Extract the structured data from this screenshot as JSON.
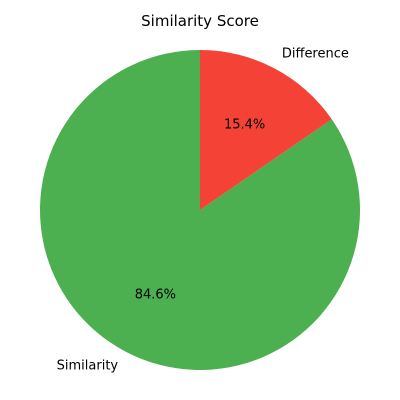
{
  "chart_data": {
    "type": "pie",
    "title": "Similarity Score",
    "slices": [
      {
        "label": "Similarity",
        "value": 84.6,
        "pct_label": "84.6%",
        "color": "#4caf50"
      },
      {
        "label": "Difference",
        "value": 15.4,
        "pct_label": "15.4%",
        "color": "#f44336"
      }
    ],
    "start_angle_deg": 90,
    "direction": "counterclockwise",
    "legend": "none"
  }
}
